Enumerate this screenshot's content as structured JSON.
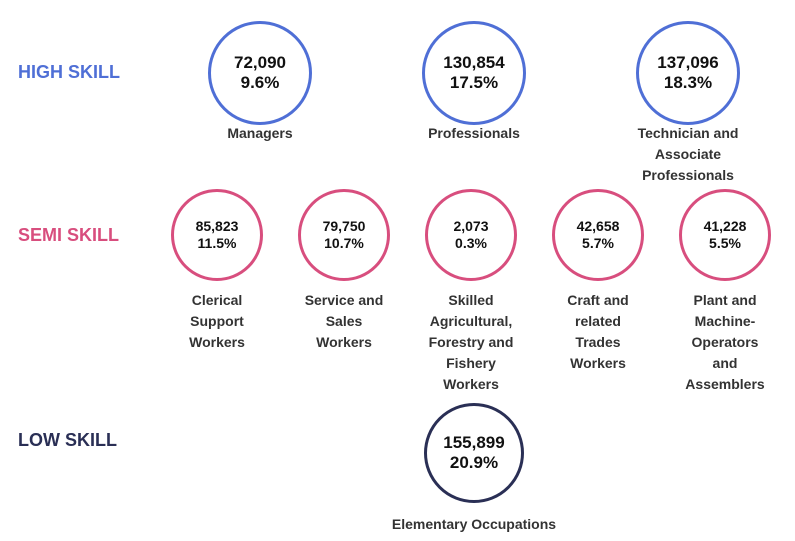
{
  "groups": [
    {
      "label": "HIGH SKILL",
      "color": "#4f6fd6",
      "items": [
        {
          "count": "72,090",
          "percent": "9.6%",
          "name": [
            "Managers"
          ]
        },
        {
          "count": "130,854",
          "percent": "17.5%",
          "name": [
            "Professionals"
          ]
        },
        {
          "count": "137,096",
          "percent": "18.3%",
          "name": [
            "Technician and",
            "Associate",
            "Professionals"
          ]
        }
      ]
    },
    {
      "label": "SEMI SKILL",
      "color": "#d84e7e",
      "items": [
        {
          "count": "85,823",
          "percent": "11.5%",
          "name": [
            "Clerical",
            "Support",
            "Workers"
          ]
        },
        {
          "count": "79,750",
          "percent": "10.7%",
          "name": [
            "Service and",
            "Sales",
            "Workers"
          ]
        },
        {
          "count": "2,073",
          "percent": "0.3%",
          "name": [
            "Skilled",
            "Agricultural,",
            "Forestry and",
            "Fishery",
            "Workers"
          ]
        },
        {
          "count": "42,658",
          "percent": "5.7%",
          "name": [
            "Craft and",
            "related",
            "Trades",
            "Workers"
          ]
        },
        {
          "count": "41,228",
          "percent": "5.5%",
          "name": [
            "Plant and",
            "Machine-",
            "Operators",
            "and",
            "Assemblers"
          ]
        }
      ]
    },
    {
      "label": "LOW SKILL",
      "color": "#2a2f55",
      "items": [
        {
          "count": "155,899",
          "percent": "20.9%",
          "name": [
            "Elementary Occupations"
          ]
        }
      ]
    }
  ]
}
